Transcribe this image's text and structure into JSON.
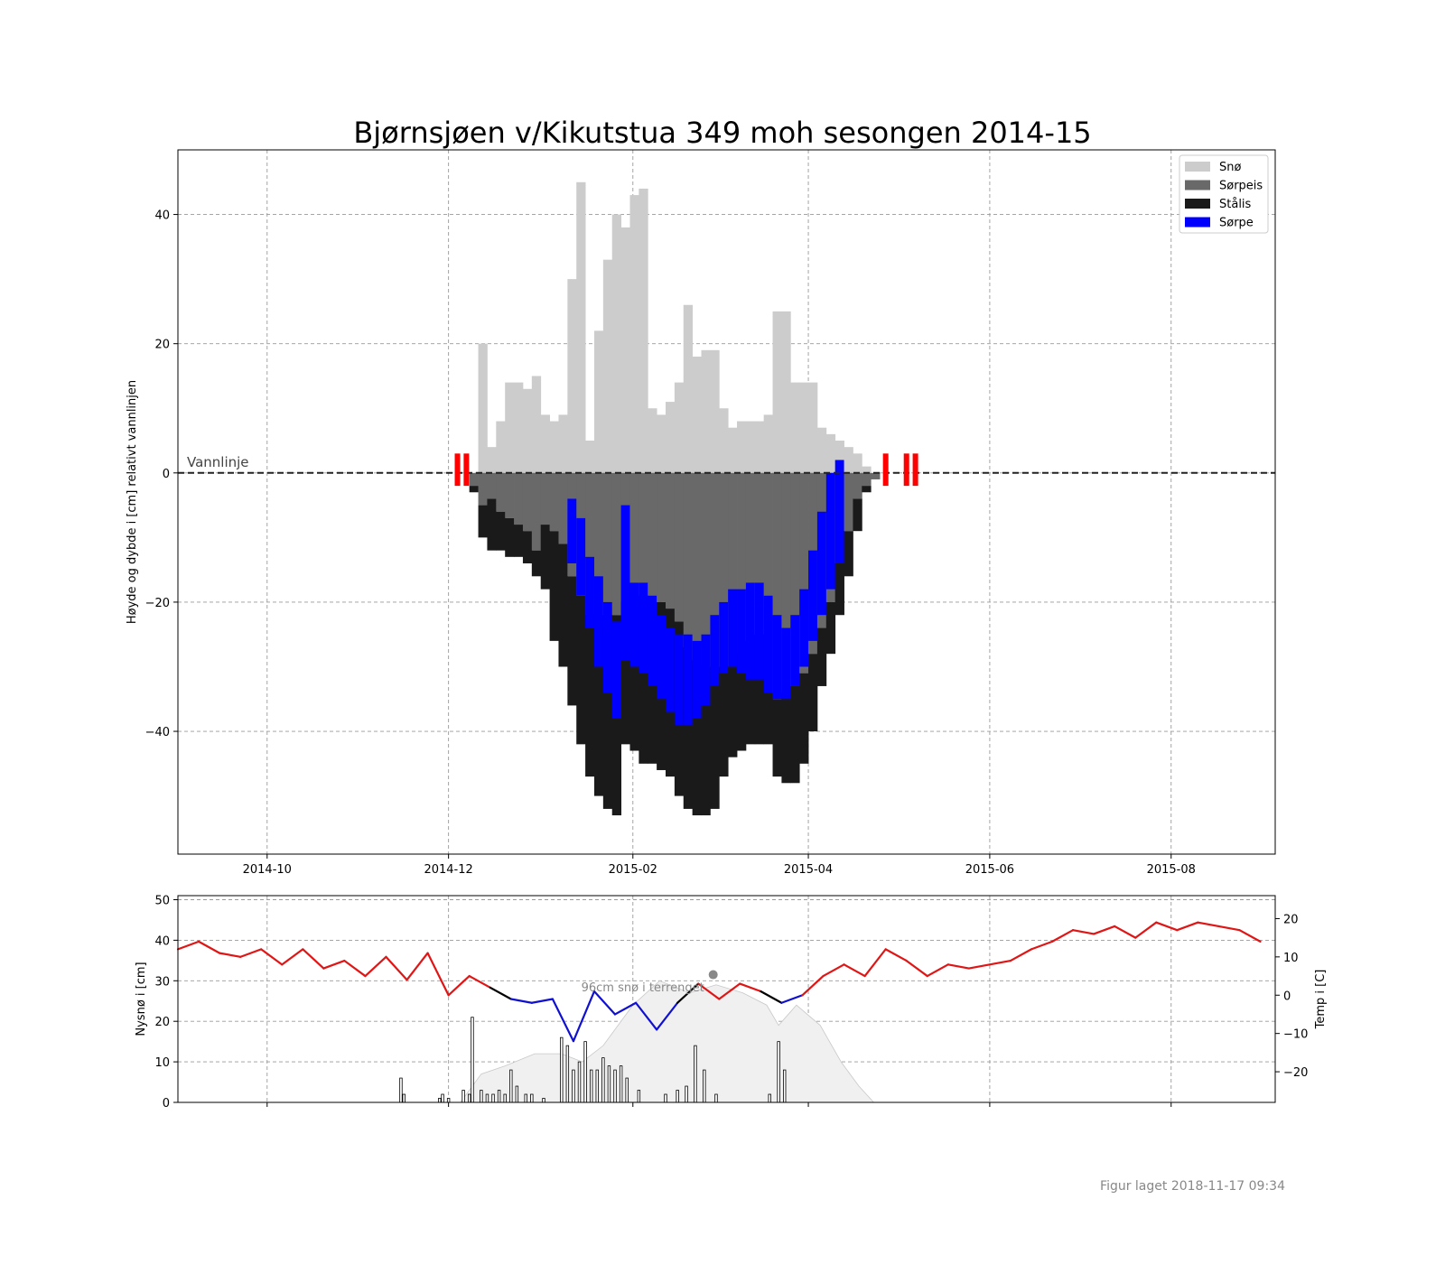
{
  "title": "Bjørnsjøen v/Kikutstua 349 moh sesongen 2014-15",
  "footer": "Figur laget 2018-11-17 09:34",
  "colors": {
    "sno": "#cccccc",
    "sorpeis": "#696969",
    "stalis": "#1a1a1a",
    "sorpe": "#0000ff",
    "temp_warm": "#e01515",
    "temp_cold": "#1010d0",
    "temp_zero": "#000000",
    "snow_cover": "#f0f0f0",
    "markers": "#ff0000",
    "grid": "#9a9a9a"
  },
  "chart_data": [
    {
      "type": "area",
      "title": "Bjørnsjøen v/Kikutstua 349 moh sesongen 2014-15",
      "xlabel": "",
      "ylabel": "Høyde og dybde i [cm] relativt vannlinjen",
      "x_ticks": [
        "2014-10",
        "2014-12",
        "2015-02",
        "2015-04",
        "2015-06",
        "2015-08"
      ],
      "xlim": [
        "2014-09-01",
        "2015-09-05"
      ],
      "ylim": [
        -59,
        50
      ],
      "y_ticks": [
        40,
        20,
        0,
        -20,
        -40
      ],
      "grid": true,
      "legend": {
        "placement": "top-right",
        "entries": [
          "Snø",
          "Sørpeis",
          "Stålis",
          "Sørpe"
        ]
      },
      "waterline_label": "Vannlinje",
      "red_markers": [
        "2014-12-04",
        "2014-12-07",
        "2015-04-27",
        "2015-05-04",
        "2015-05-07"
      ],
      "columns_note": "x = date, top_snow = top of snow (cm), sorpeis = bottom of slush ice, stalis = bottom of black ice, blue = sorpe interval [top, bottom]",
      "x": [
        "2014-12-08",
        "2014-12-11",
        "2014-12-14",
        "2014-12-17",
        "2014-12-20",
        "2014-12-23",
        "2014-12-26",
        "2014-12-29",
        "2015-01-01",
        "2015-01-04",
        "2015-01-07",
        "2015-01-10",
        "2015-01-13",
        "2015-01-16",
        "2015-01-19",
        "2015-01-22",
        "2015-01-25",
        "2015-01-28",
        "2015-01-31",
        "2015-02-03",
        "2015-02-06",
        "2015-02-09",
        "2015-02-12",
        "2015-02-15",
        "2015-02-18",
        "2015-02-21",
        "2015-02-24",
        "2015-02-27",
        "2015-03-02",
        "2015-03-05",
        "2015-03-08",
        "2015-03-11",
        "2015-03-14",
        "2015-03-17",
        "2015-03-20",
        "2015-03-23",
        "2015-03-26",
        "2015-03-29",
        "2015-04-01",
        "2015-04-04",
        "2015-04-07",
        "2015-04-10",
        "2015-04-13",
        "2015-04-16",
        "2015-04-19",
        "2015-04-22"
      ],
      "top_snow": [
        0,
        20,
        4,
        8,
        14,
        14,
        13,
        15,
        9,
        8,
        9,
        30,
        45,
        5,
        22,
        33,
        40,
        38,
        43,
        44,
        10,
        9,
        11,
        14,
        26,
        18,
        19,
        19,
        10,
        7,
        8,
        8,
        8,
        9,
        25,
        25,
        14,
        14,
        14,
        7,
        6,
        5,
        4,
        3,
        1,
        0
      ],
      "sorpeis": [
        -2,
        -5,
        -4,
        -6,
        -7,
        -8,
        -9,
        -12,
        -8,
        -9,
        -11,
        -16,
        -19,
        -22,
        -22,
        -22,
        -22,
        -20,
        -19,
        -19,
        -19,
        -20,
        -21,
        -23,
        -27,
        -29,
        -30,
        -30,
        -30,
        -30,
        -28,
        -26,
        -25,
        -25,
        -35,
        -34,
        -33,
        -31,
        -28,
        -24,
        -20,
        -14,
        -9,
        -4,
        -2,
        -1
      ],
      "stalis": [
        -3,
        -10,
        -12,
        -12,
        -13,
        -13,
        -14,
        -16,
        -18,
        -26,
        -30,
        -36,
        -42,
        -47,
        -50,
        -52,
        -53,
        -42,
        -43,
        -45,
        -45,
        -46,
        -47,
        -50,
        -52,
        -53,
        -53,
        -52,
        -47,
        -44,
        -43,
        -42,
        -42,
        -42,
        -47,
        -48,
        -48,
        -45,
        -40,
        -33,
        -28,
        -22,
        -16,
        -9,
        -3,
        -1
      ],
      "sorpe_top": [
        null,
        null,
        null,
        null,
        null,
        null,
        null,
        null,
        null,
        null,
        null,
        -4,
        -7,
        -13,
        -16,
        -20,
        -23,
        -5,
        -17,
        -17,
        -19,
        -22,
        -24,
        -25,
        -25,
        -26,
        -25,
        -22,
        -20,
        -18,
        -18,
        -17,
        -17,
        -19,
        -22,
        -24,
        -22,
        -18,
        -12,
        -6,
        0,
        2,
        null,
        null,
        null,
        null
      ],
      "sorpe_bottom": [
        null,
        null,
        null,
        null,
        null,
        null,
        null,
        null,
        null,
        null,
        null,
        -14,
        -19,
        -24,
        -30,
        -34,
        -38,
        -29,
        -30,
        -31,
        -33,
        -35,
        -37,
        -39,
        -39,
        -38,
        -36,
        -33,
        -31,
        -30,
        -31,
        -32,
        -32,
        -34,
        -35,
        -35,
        -33,
        -30,
        -26,
        -22,
        -18,
        -14,
        null,
        null,
        null,
        null
      ]
    },
    {
      "type": "bar",
      "ylabel": "Nysnø i [cm]",
      "y2label": "Temp i [C]",
      "ylim": [
        0,
        51
      ],
      "y_ticks": [
        50,
        40,
        30,
        20,
        10,
        0
      ],
      "y2lim": [
        -28,
        26
      ],
      "y2_ticks": [
        20,
        10,
        0,
        -10,
        -20
      ],
      "annotation": "96cm snø i terrenget",
      "annotation_point": {
        "date": "2015-02-28",
        "value": 31.5
      },
      "new_snow": {
        "dates": [
          "2014-11-15",
          "2014-11-16",
          "2014-11-28",
          "2014-11-29",
          "2014-12-01",
          "2014-12-06",
          "2014-12-08",
          "2014-12-09",
          "2014-12-12",
          "2014-12-14",
          "2014-12-16",
          "2014-12-18",
          "2014-12-20",
          "2014-12-22",
          "2014-12-24",
          "2014-12-27",
          "2014-12-29",
          "2015-01-02",
          "2015-01-08",
          "2015-01-10",
          "2015-01-12",
          "2015-01-14",
          "2015-01-16",
          "2015-01-18",
          "2015-01-20",
          "2015-01-22",
          "2015-01-24",
          "2015-01-26",
          "2015-01-28",
          "2015-01-30",
          "2015-02-03",
          "2015-02-12",
          "2015-02-16",
          "2015-02-19",
          "2015-02-22",
          "2015-02-25",
          "2015-03-01",
          "2015-03-19",
          "2015-03-22",
          "2015-03-24"
        ],
        "values": [
          6,
          2,
          1,
          2,
          1,
          3,
          2,
          21,
          3,
          2,
          2,
          3,
          2,
          8,
          4,
          2,
          2,
          1,
          16,
          14,
          8,
          10,
          15,
          8,
          8,
          11,
          9,
          8,
          9,
          6,
          3,
          2,
          3,
          4,
          14,
          8,
          2,
          2,
          15,
          8
        ]
      },
      "snow_cover": {
        "dates": [
          "2014-12-05",
          "2014-12-12",
          "2014-12-20",
          "2014-12-30",
          "2015-01-08",
          "2015-01-15",
          "2015-01-22",
          "2015-02-01",
          "2015-02-10",
          "2015-02-20",
          "2015-03-01",
          "2015-03-10",
          "2015-03-18",
          "2015-03-22",
          "2015-03-28",
          "2015-04-05",
          "2015-04-12",
          "2015-04-18",
          "2015-04-23"
        ],
        "depth_cm": [
          0,
          7,
          9,
          12,
          12,
          10,
          14,
          24,
          30,
          27,
          29,
          27,
          24,
          19,
          24,
          19,
          10,
          4,
          0
        ]
      },
      "temperature": {
        "start": "2014-09-01",
        "end": "2015-08-31",
        "points": [
          [
            "2014-09-01",
            12
          ],
          [
            "2014-09-08",
            14
          ],
          [
            "2014-09-15",
            11
          ],
          [
            "2014-09-22",
            10
          ],
          [
            "2014-09-29",
            12
          ],
          [
            "2014-10-06",
            8
          ],
          [
            "2014-10-13",
            12
          ],
          [
            "2014-10-20",
            7
          ],
          [
            "2014-10-27",
            9
          ],
          [
            "2014-11-03",
            5
          ],
          [
            "2014-11-10",
            10
          ],
          [
            "2014-11-17",
            4
          ],
          [
            "2014-11-24",
            11
          ],
          [
            "2014-12-01",
            0
          ],
          [
            "2014-12-08",
            5
          ],
          [
            "2014-12-15",
            2
          ],
          [
            "2014-12-22",
            -1
          ],
          [
            "2014-12-29",
            -2
          ],
          [
            "2015-01-05",
            -1
          ],
          [
            "2015-01-12",
            -12
          ],
          [
            "2015-01-19",
            1
          ],
          [
            "2015-01-26",
            -5
          ],
          [
            "2015-02-02",
            -2
          ],
          [
            "2015-02-09",
            -9
          ],
          [
            "2015-02-16",
            -2
          ],
          [
            "2015-02-23",
            3
          ],
          [
            "2015-03-02",
            -1
          ],
          [
            "2015-03-09",
            3
          ],
          [
            "2015-03-16",
            1
          ],
          [
            "2015-03-23",
            -2
          ],
          [
            "2015-03-30",
            0
          ],
          [
            "2015-04-06",
            5
          ],
          [
            "2015-04-13",
            8
          ],
          [
            "2015-04-20",
            5
          ],
          [
            "2015-04-27",
            12
          ],
          [
            "2015-05-04",
            9
          ],
          [
            "2015-05-11",
            5
          ],
          [
            "2015-05-18",
            8
          ],
          [
            "2015-05-25",
            7
          ],
          [
            "2015-06-01",
            8
          ],
          [
            "2015-06-08",
            9
          ],
          [
            "2015-06-15",
            12
          ],
          [
            "2015-06-22",
            14
          ],
          [
            "2015-06-29",
            17
          ],
          [
            "2015-07-06",
            16
          ],
          [
            "2015-07-13",
            18
          ],
          [
            "2015-07-20",
            15
          ],
          [
            "2015-07-27",
            19
          ],
          [
            "2015-08-03",
            17
          ],
          [
            "2015-08-10",
            19
          ],
          [
            "2015-08-17",
            18
          ],
          [
            "2015-08-24",
            17
          ],
          [
            "2015-08-31",
            14
          ]
        ]
      }
    }
  ]
}
